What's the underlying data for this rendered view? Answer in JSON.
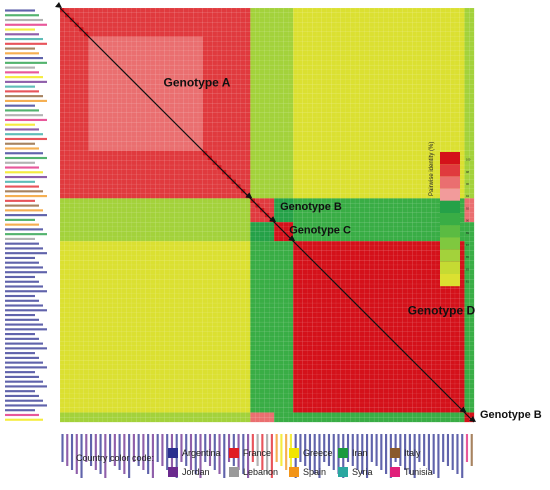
{
  "chart_data": {
    "type": "heatmap",
    "title": "",
    "metric_label": "Pairwise identity (%)",
    "colorbar": {
      "ticks": [
        100,
        98,
        96,
        94,
        92,
        90,
        89,
        87,
        85,
        83,
        81
      ],
      "colors": [
        "#d4111a",
        "#e03a3e",
        "#ea6f70",
        "#f29b9b",
        "#25a148",
        "#39ad45",
        "#5bbb42",
        "#7fc83f",
        "#a3d23b",
        "#c5da33",
        "#dbe031"
      ]
    },
    "genotypes": [
      {
        "name": "Genotype A",
        "n": 40
      },
      {
        "name": "Genotype B",
        "n": 5
      },
      {
        "name": "Genotype C",
        "n": 4
      },
      {
        "name": "Genotype D",
        "n": 36
      },
      {
        "name": "Genotype B",
        "n": 2
      }
    ],
    "identity_blocks": {
      "A_A": 98.5,
      "A_B": 85.0,
      "A_C": 86.0,
      "A_D": 82.0,
      "A_B2": 85.0,
      "B_B": 98.0,
      "B_C": 92.0,
      "B_D": 91.0,
      "B_B2": 96.0,
      "C_C": 99.0,
      "C_D": 91.5,
      "C_B2": 91.0,
      "D_D": 99.5,
      "D_B2": 91.0,
      "B2_B2": 99.0
    }
  },
  "legend": {
    "title": "Country color code:",
    "countries": [
      {
        "name": "Argentina",
        "color": "#2b2f8f"
      },
      {
        "name": "France",
        "color": "#e01b24"
      },
      {
        "name": "Greece",
        "color": "#f2e500"
      },
      {
        "name": "Iran",
        "color": "#1a9a3e"
      },
      {
        "name": "Italy",
        "color": "#8a5a2b"
      },
      {
        "name": "Jordan",
        "color": "#6a2a8e"
      },
      {
        "name": "Lebanon",
        "color": "#9a9a9a"
      },
      {
        "name": "Spain",
        "color": "#f29418"
      },
      {
        "name": "Syria",
        "color": "#2aa7a0"
      },
      {
        "name": "Tunisia",
        "color": "#e0207a"
      }
    ]
  }
}
